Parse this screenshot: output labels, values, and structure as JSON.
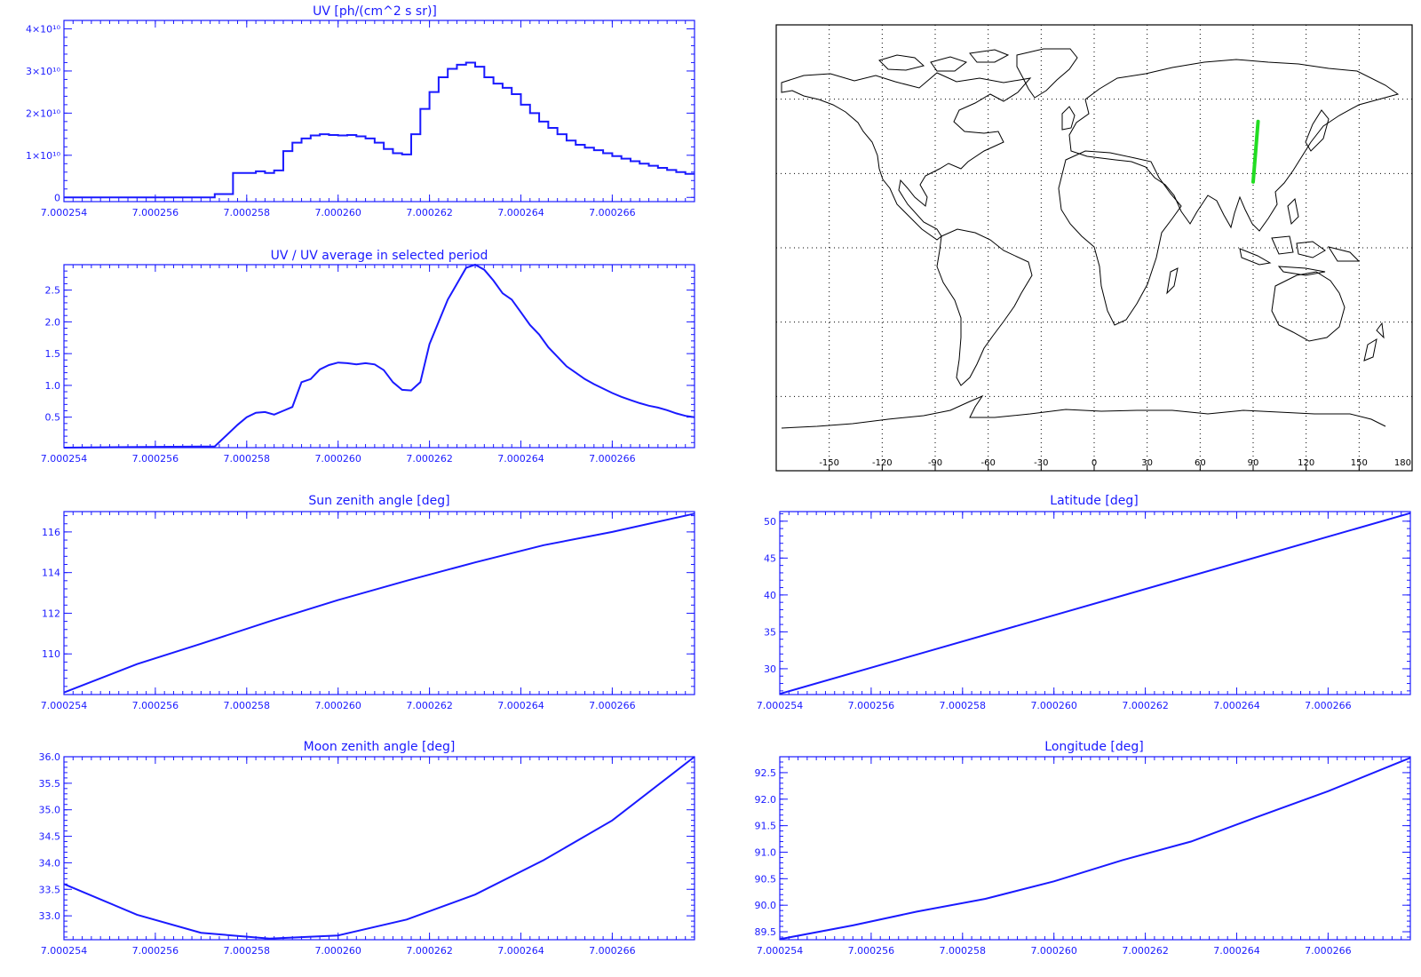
{
  "colors": {
    "plot": "#1a1aff",
    "track": "#22dd22",
    "map": "#000000"
  },
  "x_ticks": [
    "7.000254",
    "7.000256",
    "7.000258",
    "7.000260",
    "7.000262",
    "7.000264",
    "7.000266"
  ],
  "map": {
    "lon_ticks": [
      "-150",
      "-120",
      "-90",
      "-60",
      "-30",
      "0",
      "30",
      "60",
      "90",
      "120",
      "150",
      "180"
    ],
    "track": {
      "lon": [
        90.0,
        92.8
      ],
      "lat": [
        26.6,
        51.0
      ]
    }
  },
  "chart_data": [
    {
      "id": "uv",
      "type": "line",
      "step": true,
      "title": "UV [ph/(cm^2 s sr)]",
      "xlim": [
        7.000254,
        7.0002678
      ],
      "ylim": [
        -1000000000.0,
        42000000000.0
      ],
      "yticks": [
        0,
        10000000000.0,
        20000000000.0,
        30000000000.0,
        40000000000.0
      ],
      "ytick_labels": [
        "0",
        "1×10¹⁰",
        "2×10¹⁰",
        "3×10¹⁰",
        "4×10¹⁰"
      ],
      "x": [
        7.000254,
        7.0002573,
        7.0002577,
        7.0002582,
        7.0002584,
        7.0002586,
        7.0002588,
        7.000259,
        7.0002592,
        7.0002594,
        7.0002596,
        7.0002598,
        7.00026,
        7.0002602,
        7.0002604,
        7.0002606,
        7.0002608,
        7.000261,
        7.0002612,
        7.0002614,
        7.0002616,
        7.0002618,
        7.000262,
        7.0002622,
        7.0002624,
        7.0002626,
        7.0002628,
        7.000263,
        7.0002632,
        7.0002634,
        7.0002636,
        7.0002638,
        7.000264,
        7.0002642,
        7.0002644,
        7.0002646,
        7.0002648,
        7.000265,
        7.0002652,
        7.0002654,
        7.0002656,
        7.0002658,
        7.000266,
        7.0002662,
        7.0002664,
        7.0002666,
        7.0002668,
        7.000267,
        7.0002672,
        7.0002674,
        7.0002676
      ],
      "y": [
        0,
        800000000.0,
        5800000000.0,
        6200000000.0,
        5800000000.0,
        6400000000.0,
        11000000000.0,
        13000000000.0,
        14000000000.0,
        14700000000.0,
        15000000000.0,
        14800000000.0,
        14700000000.0,
        14800000000.0,
        14500000000.0,
        14000000000.0,
        13000000000.0,
        11500000000.0,
        10500000000.0,
        10200000000.0,
        15000000000.0,
        21000000000.0,
        25000000000.0,
        28500000000.0,
        30500000000.0,
        31500000000.0,
        32000000000.0,
        31000000000.0,
        28500000000.0,
        27000000000.0,
        26000000000.0,
        24500000000.0,
        22000000000.0,
        20000000000.0,
        18000000000.0,
        16500000000.0,
        15000000000.0,
        13500000000.0,
        12500000000.0,
        11800000000.0,
        11200000000.0,
        10500000000.0,
        9800000000.0,
        9200000000.0,
        8600000000.0,
        8000000000.0,
        7500000000.0,
        7000000000.0,
        6500000000.0,
        6000000000.0,
        5600000000.0
      ]
    },
    {
      "id": "uv_ratio",
      "type": "line",
      "title": "UV / UV average in selected period",
      "xlim": [
        7.000254,
        7.0002678
      ],
      "ylim": [
        0.02,
        2.9
      ],
      "yticks": [
        0.5,
        1.0,
        1.5,
        2.0,
        2.5
      ],
      "ytick_labels": [
        "0.5",
        "1.0",
        "1.5",
        "2.0",
        "2.5"
      ],
      "x": [
        7.000254,
        7.0002573,
        7.0002578,
        7.000258,
        7.0002582,
        7.0002584,
        7.0002586,
        7.0002588,
        7.000259,
        7.0002592,
        7.0002594,
        7.0002596,
        7.0002598,
        7.00026,
        7.0002602,
        7.0002604,
        7.0002606,
        7.0002608,
        7.000261,
        7.0002612,
        7.0002614,
        7.0002616,
        7.0002618,
        7.000262,
        7.0002622,
        7.0002624,
        7.0002626,
        7.0002628,
        7.000263,
        7.0002632,
        7.0002634,
        7.0002636,
        7.0002638,
        7.000264,
        7.0002642,
        7.0002644,
        7.0002646,
        7.0002648,
        7.000265,
        7.0002652,
        7.0002654,
        7.0002656,
        7.0002658,
        7.000266,
        7.0002662,
        7.0002664,
        7.0002666,
        7.0002668,
        7.000267,
        7.0002672,
        7.0002674,
        7.0002676,
        7.0002678
      ],
      "y": [
        0.02,
        0.04,
        0.38,
        0.5,
        0.57,
        0.58,
        0.54,
        0.6,
        0.66,
        1.05,
        1.1,
        1.25,
        1.32,
        1.36,
        1.35,
        1.33,
        1.35,
        1.33,
        1.24,
        1.05,
        0.93,
        0.92,
        1.05,
        1.65,
        2.0,
        2.35,
        2.6,
        2.85,
        2.9,
        2.82,
        2.65,
        2.45,
        2.35,
        2.15,
        1.95,
        1.8,
        1.6,
        1.45,
        1.3,
        1.2,
        1.1,
        1.02,
        0.95,
        0.88,
        0.82,
        0.77,
        0.72,
        0.68,
        0.65,
        0.61,
        0.56,
        0.52,
        0.5
      ]
    },
    {
      "id": "sun_zenith",
      "type": "line",
      "title": "Sun zenith angle [deg]",
      "xlim": [
        7.000254,
        7.0002678
      ],
      "ylim": [
        108.0,
        117.0
      ],
      "yticks": [
        110,
        112,
        114,
        116
      ],
      "ytick_labels": [
        "110",
        "112",
        "114",
        "116"
      ],
      "x": [
        7.000254,
        7.0002556,
        7.000257,
        7.0002585,
        7.00026,
        7.0002615,
        7.000263,
        7.0002645,
        7.000266,
        7.0002678
      ],
      "y": [
        108.1,
        109.5,
        110.5,
        111.6,
        112.65,
        113.6,
        114.5,
        115.35,
        116.0,
        116.9
      ]
    },
    {
      "id": "latitude",
      "type": "line",
      "title": "Latitude [deg]",
      "xlim": [
        7.000254,
        7.0002678
      ],
      "ylim": [
        26.5,
        51.3
      ],
      "yticks": [
        30,
        35,
        40,
        45,
        50
      ],
      "ytick_labels": [
        "30",
        "35",
        "40",
        "45",
        "50"
      ],
      "x": [
        7.000254,
        7.0002678
      ],
      "y": [
        26.6,
        51.1
      ]
    },
    {
      "id": "moon_zenith",
      "type": "line",
      "title": "Moon zenith angle [deg]",
      "xlim": [
        7.000254,
        7.0002678
      ],
      "ylim": [
        32.55,
        36.0
      ],
      "yticks": [
        33.0,
        33.5,
        34.0,
        34.5,
        35.0,
        35.5,
        36.0
      ],
      "ytick_labels": [
        "33.0",
        "33.5",
        "34.0",
        "34.5",
        "35.0",
        "35.5",
        "36.0"
      ],
      "x": [
        7.000254,
        7.0002556,
        7.000257,
        7.0002585,
        7.00026,
        7.0002615,
        7.000263,
        7.0002645,
        7.000266,
        7.0002678
      ],
      "y": [
        33.6,
        33.02,
        32.68,
        32.57,
        32.63,
        32.93,
        33.4,
        34.05,
        34.8,
        36.0
      ]
    },
    {
      "id": "longitude",
      "type": "line",
      "title": "Longitude [deg]",
      "xlim": [
        7.000254,
        7.0002678
      ],
      "ylim": [
        89.35,
        92.8
      ],
      "yticks": [
        89.5,
        90.0,
        90.5,
        91.0,
        91.5,
        92.0,
        92.5
      ],
      "ytick_labels": [
        "89.5",
        "90.0",
        "90.5",
        "91.0",
        "91.5",
        "92.0",
        "92.5"
      ],
      "x": [
        7.000254,
        7.0002556,
        7.000257,
        7.0002585,
        7.00026,
        7.0002615,
        7.000263,
        7.0002644,
        7.000266,
        7.0002678
      ],
      "y": [
        89.36,
        89.62,
        89.88,
        90.12,
        90.45,
        90.85,
        91.2,
        91.65,
        92.15,
        92.78
      ]
    }
  ]
}
